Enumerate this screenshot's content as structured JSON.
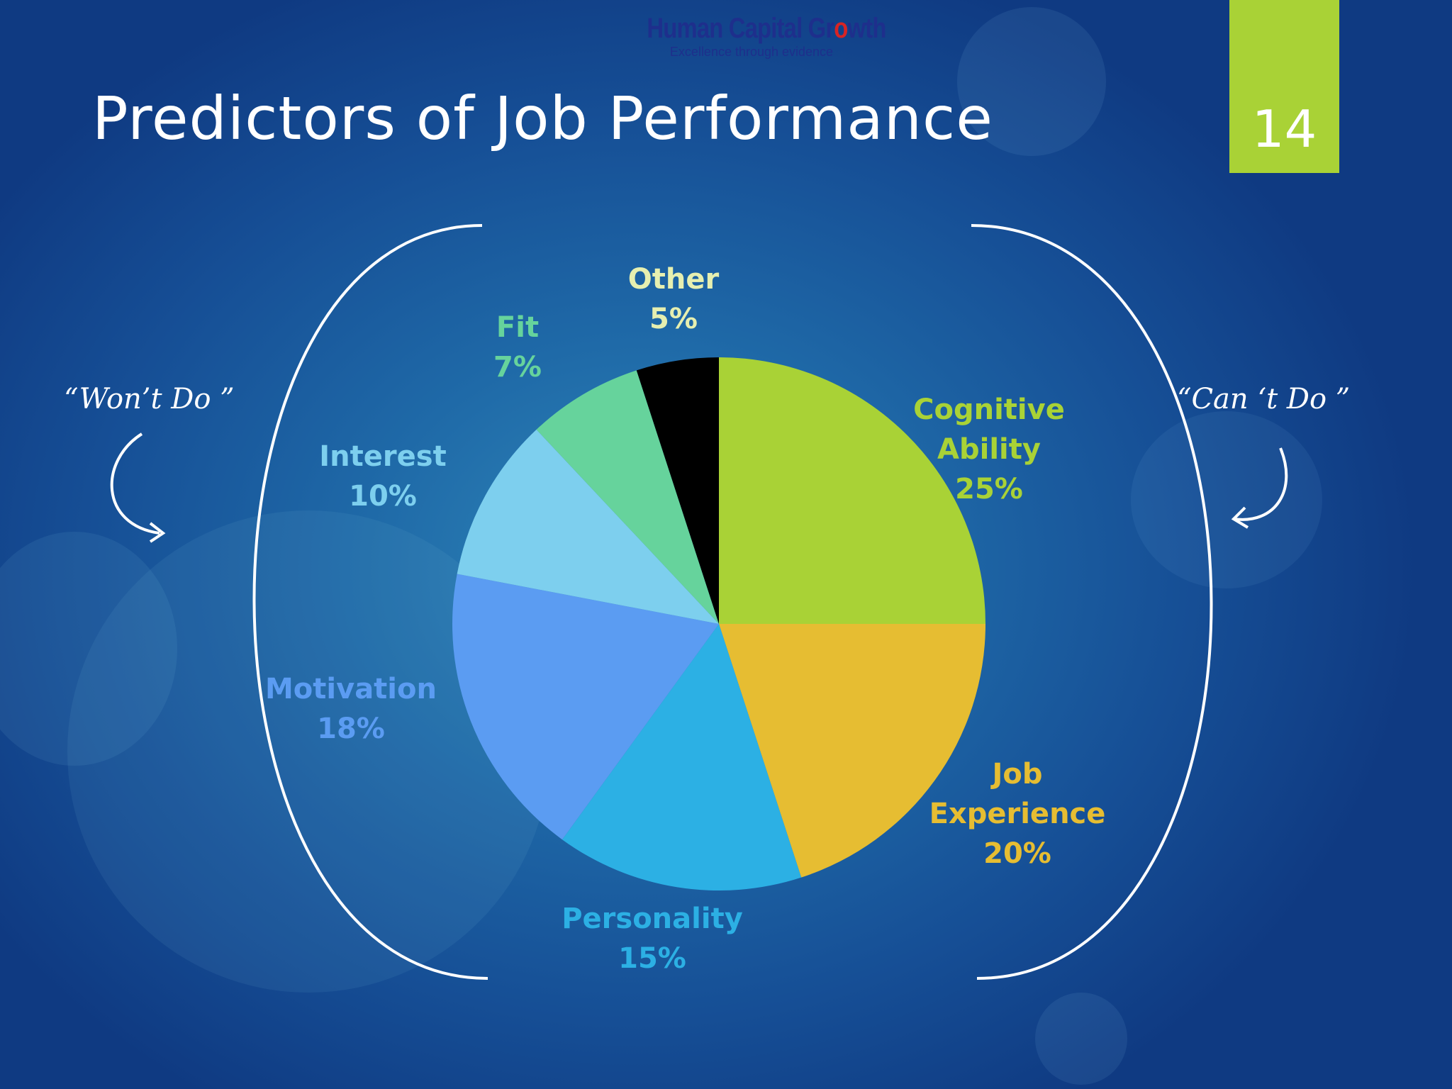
{
  "logo": {
    "name_before": "Human Capital Gr",
    "name_o": "o",
    "name_after": "wth",
    "tagline": "Excellence through evidence"
  },
  "slide": {
    "title": "Predictors of Job Performance",
    "number": "14"
  },
  "annotations": {
    "left_quote": "“Won’t Do ”",
    "right_quote": "“Can ‘t Do ”"
  },
  "colors": {
    "accent": "#a9d236",
    "background": "#1a5c9e"
  },
  "chart_data": {
    "type": "pie",
    "title": "",
    "start_angle_deg": 0,
    "direction": "clockwise",
    "slices": [
      {
        "label": "Cognitive Ability",
        "value": 25,
        "value_label": "25%",
        "color": "#a9d236"
      },
      {
        "label": "Job Experience",
        "value": 20,
        "value_label": "20%",
        "color": "#e6bd32"
      },
      {
        "label": "Personality",
        "value": 15,
        "value_label": "15%",
        "color": "#2cb0e4"
      },
      {
        "label": "Motivation",
        "value": 18,
        "value_label": "18%",
        "color": "#5b9cf2"
      },
      {
        "label": "Interest",
        "value": 10,
        "value_label": "10%",
        "color": "#7dcfee"
      },
      {
        "label": "Fit",
        "value": 7,
        "value_label": "7%",
        "color": "#66d39c"
      },
      {
        "label": "Other",
        "value": 5,
        "value_label": "5%",
        "color": "#000000"
      }
    ],
    "labels": {
      "cognitive": {
        "line1": "Cognitive",
        "line2": "Ability",
        "line3": "25%"
      },
      "job": {
        "line1": "Job",
        "line2": "Experience",
        "line3": "20%"
      },
      "personality": {
        "line1": "Personality",
        "line2": "15%"
      },
      "motivation": {
        "line1": "Motivation",
        "line2": "18%"
      },
      "interest": {
        "line1": "Interest",
        "line2": "10%"
      },
      "fit": {
        "line1": "Fit",
        "line2": "7%"
      },
      "other": {
        "line1": "Other",
        "line2": "5%"
      }
    }
  }
}
